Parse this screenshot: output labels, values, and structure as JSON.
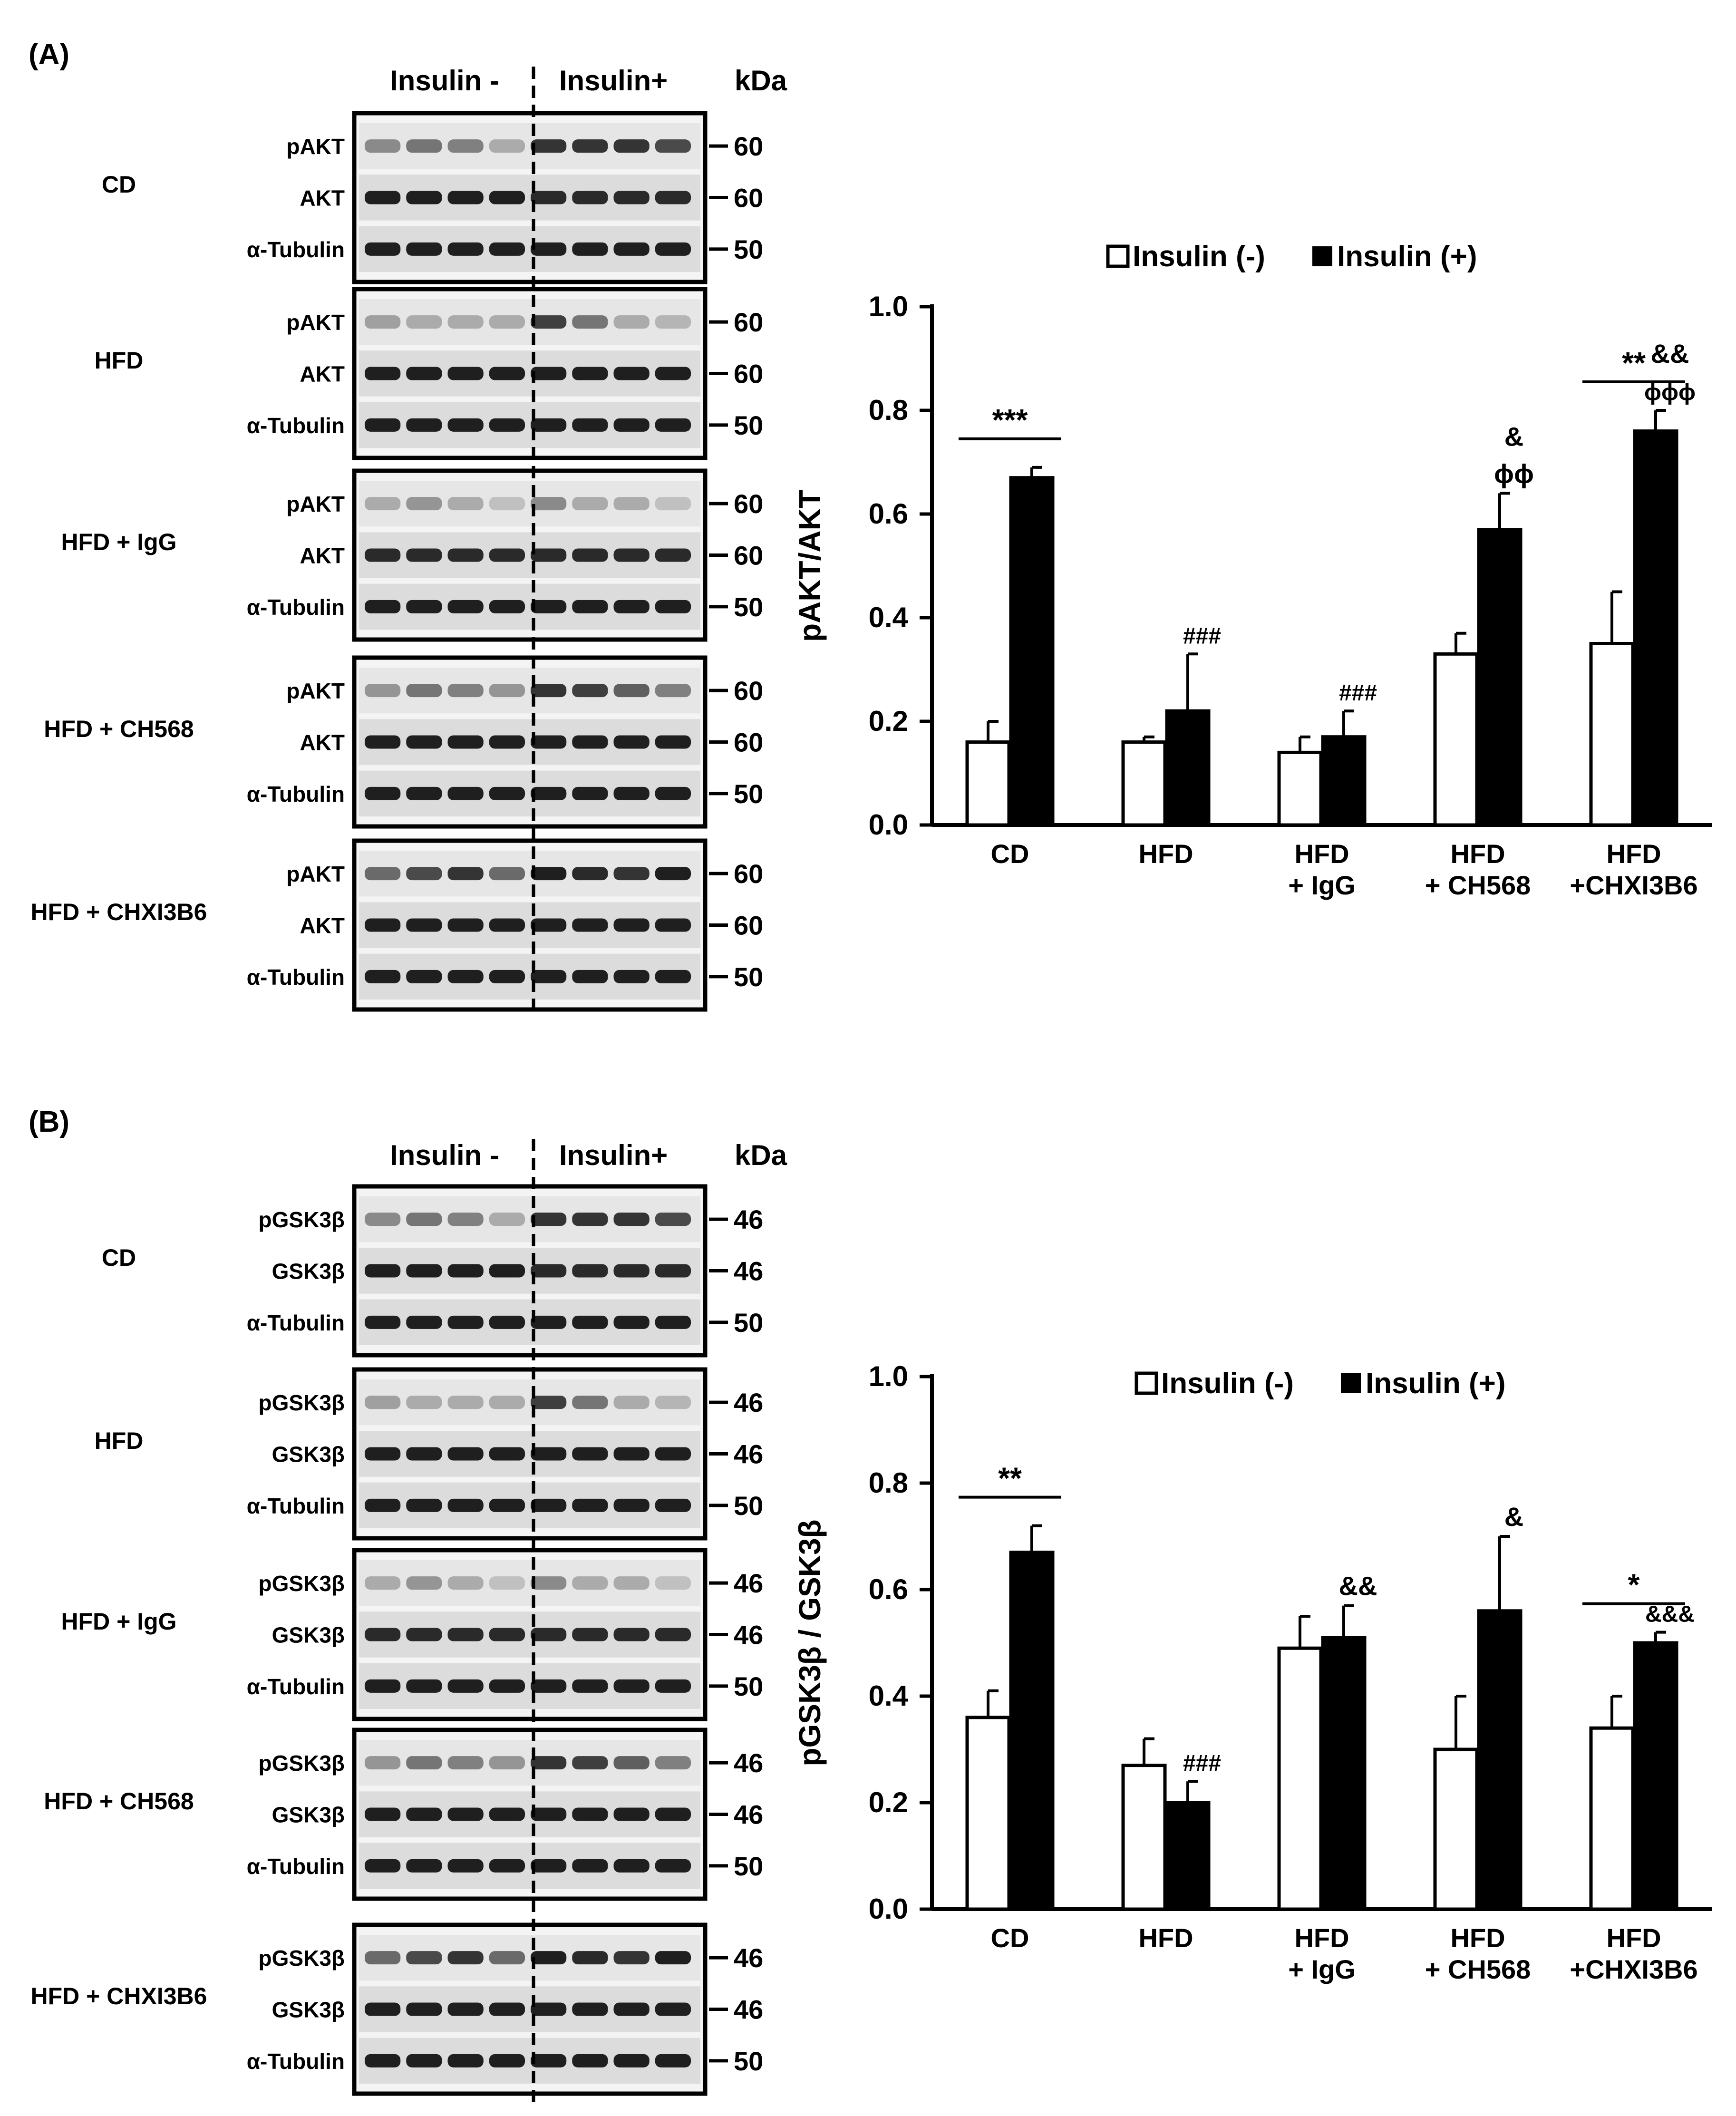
{
  "panels": [
    {
      "id": "A",
      "panel_label": "(A)",
      "blot_header": {
        "left": "Insulin -",
        "right": "Insulin+",
        "kda": "kDa"
      },
      "groups": [
        {
          "label": "CD",
          "bands": [
            {
              "name": "pAKT",
              "kda": "60"
            },
            {
              "name": "AKT",
              "kda": "60"
            },
            {
              "name": "α-Tubulin",
              "kda": "50"
            }
          ]
        },
        {
          "label": "HFD",
          "bands": [
            {
              "name": "pAKT",
              "kda": "60"
            },
            {
              "name": "AKT",
              "kda": "60"
            },
            {
              "name": "α-Tubulin",
              "kda": "50"
            }
          ]
        },
        {
          "label": "HFD + IgG",
          "bands": [
            {
              "name": "pAKT",
              "kda": "60"
            },
            {
              "name": "AKT",
              "kda": "60"
            },
            {
              "name": "α-Tubulin",
              "kda": "50"
            }
          ]
        },
        {
          "label": "HFD + CH568",
          "bands": [
            {
              "name": "pAKT",
              "kda": "60"
            },
            {
              "name": "AKT",
              "kda": "60"
            },
            {
              "name": "α-Tubulin",
              "kda": "50"
            }
          ]
        },
        {
          "label": "HFD + CHXI3B6",
          "bands": [
            {
              "name": "pAKT",
              "kda": "60"
            },
            {
              "name": "AKT",
              "kda": "60"
            },
            {
              "name": "α-Tubulin",
              "kda": "50"
            }
          ]
        }
      ]
    },
    {
      "id": "B",
      "panel_label": "(B)",
      "blot_header": {
        "left": "Insulin -",
        "right": "Insulin+",
        "kda": "kDa"
      },
      "groups": [
        {
          "label": "CD",
          "bands": [
            {
              "name": "pGSK3β",
              "kda": "46"
            },
            {
              "name": "GSK3β",
              "kda": "46"
            },
            {
              "name": "α-Tubulin",
              "kda": "50"
            }
          ]
        },
        {
          "label": "HFD",
          "bands": [
            {
              "name": "pGSK3β",
              "kda": "46"
            },
            {
              "name": "GSK3β",
              "kda": "46"
            },
            {
              "name": "α-Tubulin",
              "kda": "50"
            }
          ]
        },
        {
          "label": "HFD + IgG",
          "bands": [
            {
              "name": "pGSK3β",
              "kda": "46"
            },
            {
              "name": "GSK3β",
              "kda": "46"
            },
            {
              "name": "α-Tubulin",
              "kda": "50"
            }
          ]
        },
        {
          "label": "HFD + CH568",
          "bands": [
            {
              "name": "pGSK3β",
              "kda": "46"
            },
            {
              "name": "GSK3β",
              "kda": "46"
            },
            {
              "name": "α-Tubulin",
              "kda": "50"
            }
          ]
        },
        {
          "label": "HFD + CHXI3B6",
          "bands": [
            {
              "name": "pGSK3β",
              "kda": "46"
            },
            {
              "name": "GSK3β",
              "kda": "46"
            },
            {
              "name": "α-Tubulin",
              "kda": "50"
            }
          ]
        }
      ]
    }
  ],
  "chart_data": [
    {
      "type": "bar",
      "panel": "A",
      "ylabel": "pAKT/AKT",
      "ylim": [
        0,
        1.0
      ],
      "yticks": [
        "0.0",
        "0.2",
        "0.4",
        "0.6",
        "0.8",
        "1.0"
      ],
      "categories": [
        [
          "CD"
        ],
        [
          "HFD"
        ],
        [
          "HFD",
          "+ IgG"
        ],
        [
          "HFD",
          "+ CH568"
        ],
        [
          "HFD",
          "+CHXI3B6"
        ]
      ],
      "legend": [
        "Insulin (-)",
        "Insulin (+)"
      ],
      "legend_position": "top",
      "series": [
        {
          "name": "Insulin (-)",
          "fill": "#ffffff",
          "values": [
            0.16,
            0.16,
            0.14,
            0.33,
            0.35
          ],
          "errors": [
            0.04,
            0.01,
            0.03,
            0.04,
            0.1
          ]
        },
        {
          "name": "Insulin (+)",
          "fill": "#000000",
          "values": [
            0.67,
            0.22,
            0.17,
            0.57,
            0.76
          ],
          "errors": [
            0.02,
            0.11,
            0.05,
            0.07,
            0.04
          ]
        }
      ],
      "brackets": [
        {
          "category": 0,
          "text": "***"
        },
        {
          "category": 4,
          "text": "**"
        }
      ],
      "annotations": [
        {
          "category": 1,
          "lines": [
            "###"
          ]
        },
        {
          "category": 2,
          "lines": [
            "###"
          ]
        },
        {
          "category": 3,
          "lines": [
            "&",
            "ϕϕ"
          ]
        },
        {
          "category": 4,
          "lines": [
            "&&",
            "ϕϕϕ"
          ]
        }
      ]
    },
    {
      "type": "bar",
      "panel": "B",
      "ylabel": "pGSK3β / GSK3β",
      "ylim": [
        0,
        1.0
      ],
      "yticks": [
        "0.0",
        "0.2",
        "0.4",
        "0.6",
        "0.8",
        "1.0"
      ],
      "categories": [
        [
          "CD"
        ],
        [
          "HFD"
        ],
        [
          "HFD",
          "+ IgG"
        ],
        [
          "HFD",
          "+ CH568"
        ],
        [
          "HFD",
          "+CHXI3B6"
        ]
      ],
      "legend": [
        "Insulin (-)",
        "Insulin (+)"
      ],
      "legend_position": "top",
      "series": [
        {
          "name": "Insulin (-)",
          "fill": "#ffffff",
          "values": [
            0.36,
            0.27,
            0.49,
            0.3,
            0.34
          ],
          "errors": [
            0.05,
            0.05,
            0.06,
            0.1,
            0.06
          ]
        },
        {
          "name": "Insulin (+)",
          "fill": "#000000",
          "values": [
            0.67,
            0.2,
            0.51,
            0.56,
            0.5
          ],
          "errors": [
            0.05,
            0.04,
            0.06,
            0.14,
            0.02
          ]
        }
      ],
      "brackets": [
        {
          "category": 0,
          "text": "**"
        },
        {
          "category": 4,
          "text": "*"
        }
      ],
      "annotations": [
        {
          "category": 1,
          "lines": [
            "###"
          ]
        },
        {
          "category": 2,
          "lines": [
            "&&"
          ]
        },
        {
          "category": 3,
          "lines": [
            "&"
          ]
        },
        {
          "category": 4,
          "lines": [
            "&&&"
          ]
        }
      ]
    }
  ]
}
